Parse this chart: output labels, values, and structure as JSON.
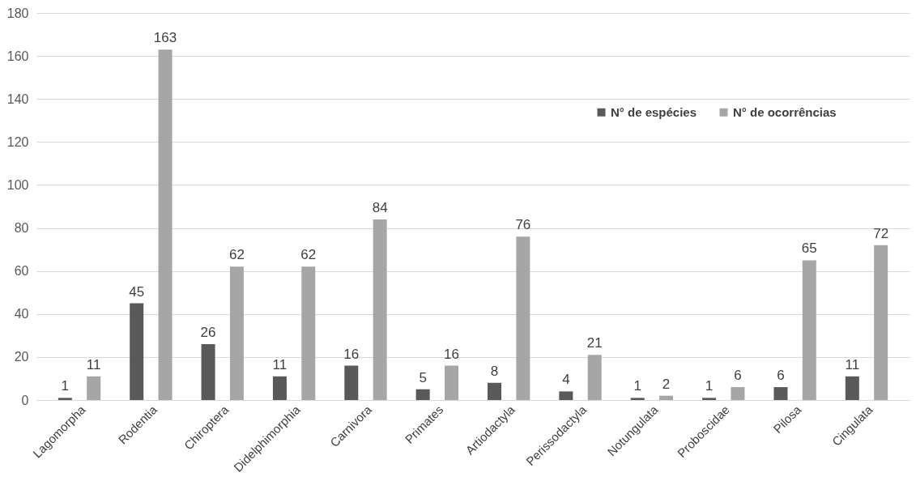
{
  "chart_data": {
    "type": "bar",
    "categories": [
      "Lagomorpha",
      "Rodentia",
      "Chiroptera",
      "Didelphimorphia",
      "Carnivora",
      "Primates",
      "Artiodactyla",
      "Perissodactyla",
      "Notungulata",
      "Proboscidae",
      "Pilosa",
      "Cingulata"
    ],
    "series": [
      {
        "name": "N° de espécies",
        "color": "#595959",
        "values": [
          1,
          45,
          26,
          11,
          16,
          5,
          8,
          4,
          1,
          1,
          6,
          11
        ]
      },
      {
        "name": "N° de ocorrências",
        "color": "#a6a6a6",
        "values": [
          11,
          163,
          62,
          62,
          84,
          16,
          76,
          21,
          2,
          6,
          65,
          72
        ]
      }
    ],
    "ylim": [
      0,
      180
    ],
    "yticks": [
      0,
      20,
      40,
      60,
      80,
      100,
      120,
      140,
      160,
      180
    ],
    "grid": "y",
    "legend": "top right",
    "data_labels": true
  }
}
